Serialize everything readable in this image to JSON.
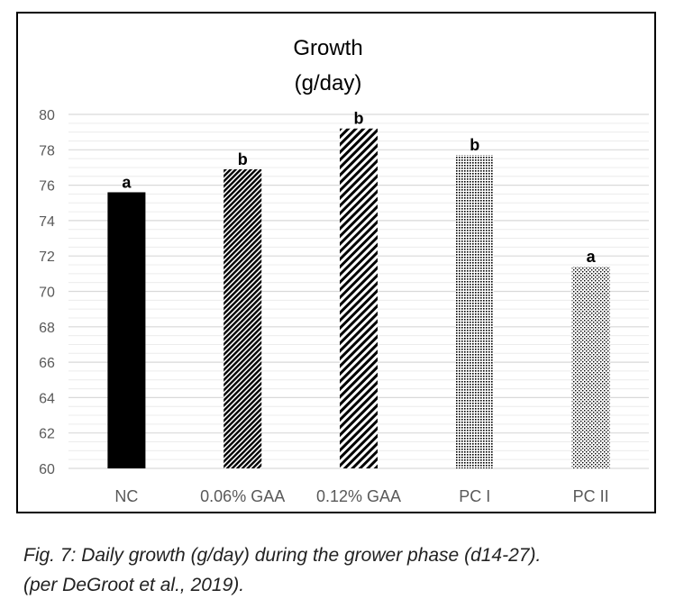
{
  "chart_data": {
    "type": "bar",
    "title": "Growth",
    "subtitle": "(g/day)",
    "categories": [
      "NC",
      "0.06% GAA",
      "0.12% GAA",
      "PC I",
      "PC II"
    ],
    "values": [
      75.6,
      76.9,
      79.2,
      77.7,
      71.4
    ],
    "significance_labels": [
      "a",
      "b",
      "b",
      "b",
      "a"
    ],
    "ylim": [
      60,
      80
    ],
    "yticks": [
      60,
      62,
      64,
      66,
      68,
      70,
      72,
      74,
      76,
      78,
      80
    ],
    "minor_grid_step": 0.5,
    "xlabel": "",
    "ylabel": "",
    "grid": true,
    "legend": "none",
    "fills": [
      "solid-black",
      "dense-diagonal-hatch",
      "wide-diagonal-hatch",
      "fine-dot",
      "sparse-dot"
    ]
  },
  "caption": {
    "line1": "Fig. 7: Daily growth (g/day) during the grower phase (d14-27).",
    "line2": "(per DeGroot et al., 2019)."
  },
  "colors": {
    "bar": "#000000",
    "major_grid": "#d9d9d9",
    "minor_grid": "#ececec",
    "axis_text": "#595959"
  }
}
